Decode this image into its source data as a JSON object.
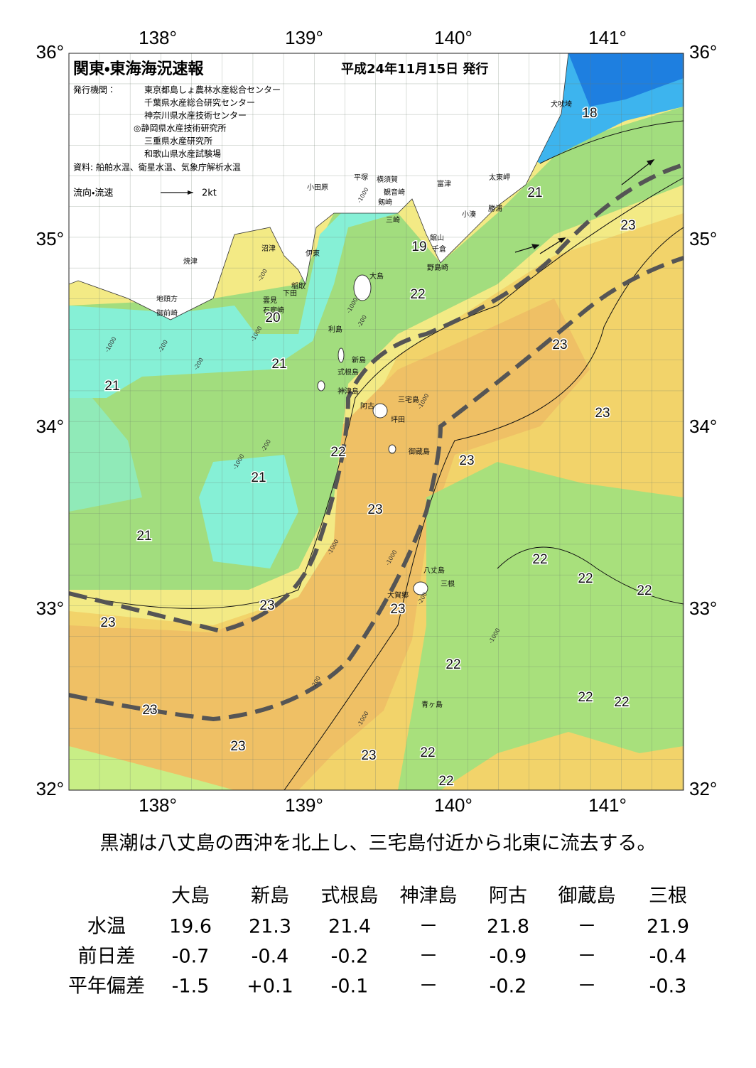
{
  "header": {
    "title": "関東・東海海況速報",
    "date": "平成24年11月15日 発行"
  },
  "issuers": {
    "label": "発行機関：",
    "organizations": [
      "東京都島しょ農林水産総合センター",
      "千葉県水産総合研究センター",
      "神奈川県水産技術センター",
      "◎静岡県水産技術研究所",
      "三重県水産研究所",
      "和歌山県水産試験場"
    ]
  },
  "source": "資料: 船舶水温、衛星水温、気象庁解析水温",
  "legend": {
    "label": "流向・流速",
    "scale": "2kt"
  },
  "axes": {
    "lon_labels": [
      "138°",
      "139°",
      "140°",
      "141°"
    ],
    "lat_labels": [
      "36°",
      "35°",
      "34°",
      "33°",
      "32°"
    ]
  },
  "places": [
    "犬吠埼",
    "太東岬",
    "勝浦",
    "小湊",
    "富津",
    "横須賀",
    "平塚",
    "観音崎",
    "剱崎",
    "三崎",
    "小田原",
    "館山",
    "千倉",
    "野島崎",
    "沼津",
    "伊東",
    "焼津",
    "稲取",
    "下田",
    "雲見",
    "石廊崎",
    "地頭方",
    "御前崎",
    "大島",
    "利島",
    "新島",
    "式根島",
    "神津島",
    "三宅島",
    "阿古",
    "坪田",
    "御蔵島",
    "八丈島",
    "三根",
    "大賀郷",
    "青ヶ島"
  ],
  "isotherm_labels": [
    18,
    21,
    23,
    19,
    22,
    20,
    23,
    21,
    21,
    23,
    22,
    23,
    21,
    23,
    21,
    22,
    22,
    22,
    23,
    23,
    23,
    22,
    23,
    22,
    22,
    23,
    23,
    22,
    22
  ],
  "depth_labels": [
    "-1000",
    "-200",
    "-200",
    "-1000",
    "-200",
    "-1000",
    "-200",
    "-1000",
    "-1000",
    "-200",
    "-1000",
    "-1000",
    "-200",
    "-1000",
    "-1000",
    "-200",
    "-1000"
  ],
  "caption": "黒潮は八丈島の西沖を北上し、三宅島付近から北東に流去する。",
  "table": {
    "columns": [
      "大島",
      "新島",
      "式根島",
      "神津島",
      "阿古",
      "御蔵島",
      "三根"
    ],
    "rows": [
      {
        "label": "水温",
        "cells": [
          "19.6",
          "21.3",
          "21.4",
          "－",
          "21.8",
          "－",
          "21.9"
        ]
      },
      {
        "label": "前日差",
        "cells": [
          "-0.7",
          "-0.4",
          "-0.2",
          "－",
          "-0.9",
          "－",
          "-0.4"
        ]
      },
      {
        "label": "平年偏差",
        "cells": [
          "-1.5",
          "+0.1",
          "-0.1",
          "－",
          "-0.2",
          "－",
          "-0.3"
        ]
      }
    ]
  }
}
